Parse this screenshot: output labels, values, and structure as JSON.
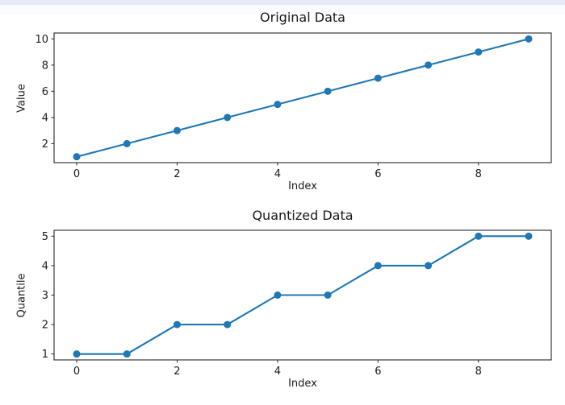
{
  "page": {
    "background_color": "#ffffff",
    "top_strip_color": "#e8eaf7"
  },
  "figure": {
    "line_color": "#1f77b4",
    "axis_color": "#262626",
    "text_color": "#1a1a1a"
  },
  "chart_data": [
    {
      "type": "line",
      "title": "Original Data",
      "xlabel": "Index",
      "ylabel": "Value",
      "x": [
        0,
        1,
        2,
        3,
        4,
        5,
        6,
        7,
        8,
        9
      ],
      "y": [
        1,
        2,
        3,
        4,
        5,
        6,
        7,
        8,
        9,
        10
      ],
      "xticks": [
        0,
        2,
        4,
        6,
        8
      ],
      "yticks": [
        2,
        4,
        6,
        8,
        10
      ],
      "xlim": [
        -0.45,
        9.45
      ],
      "ylim": [
        0.55,
        10.45
      ],
      "marker": "circle",
      "line_color": "#1f77b4",
      "grid": false,
      "legend": null
    },
    {
      "type": "line",
      "title": "Quantized Data",
      "xlabel": "Index",
      "ylabel": "Quantile",
      "x": [
        0,
        1,
        2,
        3,
        4,
        5,
        6,
        7,
        8,
        9
      ],
      "y": [
        1,
        1,
        2,
        2,
        3,
        3,
        4,
        4,
        5,
        5
      ],
      "xticks": [
        0,
        2,
        4,
        6,
        8
      ],
      "yticks": [
        1,
        2,
        3,
        4,
        5
      ],
      "xlim": [
        -0.45,
        9.45
      ],
      "ylim": [
        0.8,
        5.2
      ],
      "marker": "circle",
      "line_color": "#1f77b4",
      "grid": false,
      "legend": null
    }
  ]
}
